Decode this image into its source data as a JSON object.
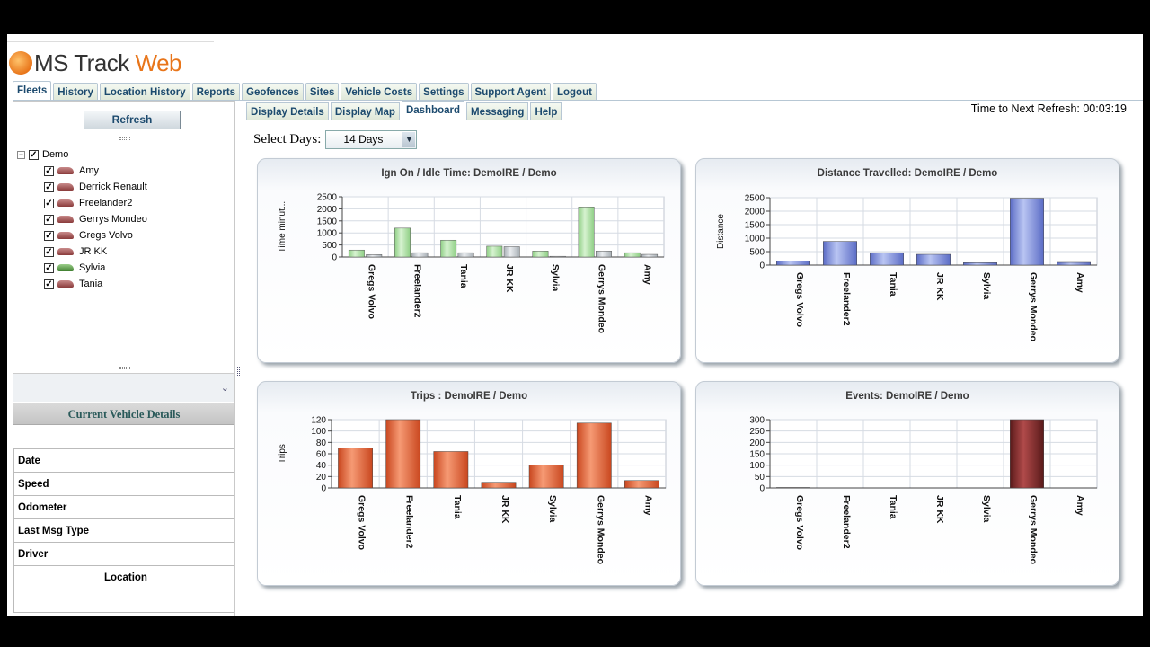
{
  "app": {
    "title_prefix": "MS Track ",
    "title_suffix": "Web"
  },
  "main_tabs": [
    {
      "label": "Fleets",
      "active": true
    },
    {
      "label": "History"
    },
    {
      "label": "Location History"
    },
    {
      "label": "Reports"
    },
    {
      "label": "Geofences"
    },
    {
      "label": "Sites"
    },
    {
      "label": "Vehicle Costs"
    },
    {
      "label": "Settings"
    },
    {
      "label": "Support Agent"
    },
    {
      "label": "Logout"
    }
  ],
  "sidebar": {
    "refresh_label": "Refresh",
    "tree_root": "Demo",
    "vehicles": [
      {
        "name": "Amy",
        "icon": "car-icon"
      },
      {
        "name": "Derrick Renault",
        "icon": "car-icon"
      },
      {
        "name": "Freelander2",
        "icon": "car-icon"
      },
      {
        "name": "Gerrys Mondeo",
        "icon": "car-icon"
      },
      {
        "name": "Gregs Volvo",
        "icon": "car-icon"
      },
      {
        "name": "JR KK",
        "icon": "car-icon"
      },
      {
        "name": "Sylvia",
        "icon": "car-icon-green"
      },
      {
        "name": "Tania",
        "icon": "car-icon"
      }
    ],
    "current_vehicle_details": {
      "title": "Current Vehicle Details",
      "fields": [
        "Date",
        "Speed",
        "Odometer",
        "Last Msg Type",
        "Driver"
      ],
      "location_label": "Location"
    }
  },
  "sub_tabs": [
    {
      "label": "Display Details"
    },
    {
      "label": "Display Map"
    },
    {
      "label": "Dashboard",
      "active": true
    },
    {
      "label": "Messaging"
    },
    {
      "label": "Help"
    }
  ],
  "refresh_timer": "Time to Next Refresh: 00:03:19",
  "select_days": {
    "label": "Select Days:",
    "value": "14 Days"
  },
  "colors": {
    "ign_bar": "#a8dba0",
    "idle_bar": "#c8ccd0",
    "distance_bar": "#7f8fd8",
    "trips_bar": "#e8653a",
    "events_bar": "#8a2f2f",
    "tab_text": "#1c4a6e"
  },
  "chart_data": [
    {
      "type": "bar",
      "title": "Ign On / Idle Time: DemoIRE / Demo",
      "ylabel": "Time minut...",
      "categories": [
        "Gregs Volvo",
        "Freelander2",
        "Tania",
        "JR KK",
        "Sylvia",
        "Gerrys Mondeo",
        "Amy"
      ],
      "series": [
        {
          "name": "Ign On",
          "values": [
            290,
            1200,
            700,
            450,
            250,
            2080,
            180
          ]
        },
        {
          "name": "Idle",
          "values": [
            100,
            180,
            180,
            430,
            30,
            250,
            110
          ]
        }
      ],
      "yticks": [
        0,
        500,
        1000,
        1500,
        2000,
        2500
      ],
      "ylim": [
        0,
        2500
      ]
    },
    {
      "type": "bar",
      "title": "Distance Travelled: DemoIRE / Demo",
      "ylabel": "Distance",
      "categories": [
        "Gregs Volvo",
        "Freelander2",
        "Tania",
        "JR KK",
        "Sylvia",
        "Gerrys Mondeo",
        "Amy"
      ],
      "values": [
        150,
        880,
        460,
        400,
        90,
        2480,
        100
      ],
      "yticks": [
        0,
        500,
        1000,
        1500,
        2000,
        2500
      ],
      "ylim": [
        0,
        2500
      ]
    },
    {
      "type": "bar",
      "title": "Trips : DemoIRE / Demo",
      "ylabel": "Trips",
      "categories": [
        "Gregs Volvo",
        "Freelander2",
        "Tania",
        "JR KK",
        "Sylvia",
        "Gerrys Mondeo",
        "Amy"
      ],
      "values": [
        70,
        120,
        64,
        10,
        40,
        114,
        13
      ],
      "yticks": [
        0,
        20,
        40,
        60,
        80,
        100,
        120
      ],
      "ylim": [
        0,
        120
      ]
    },
    {
      "type": "bar",
      "title": "Events: DemoIRE / Demo",
      "ylabel": "",
      "categories": [
        "Gregs Volvo",
        "Freelander2",
        "Tania",
        "JR KK",
        "Sylvia",
        "Gerrys Mondeo",
        "Amy"
      ],
      "values": [
        2,
        0,
        0,
        0,
        0,
        300,
        0
      ],
      "yticks": [
        0,
        50,
        100,
        150,
        200,
        250,
        300
      ],
      "ylim": [
        0,
        300
      ]
    }
  ]
}
